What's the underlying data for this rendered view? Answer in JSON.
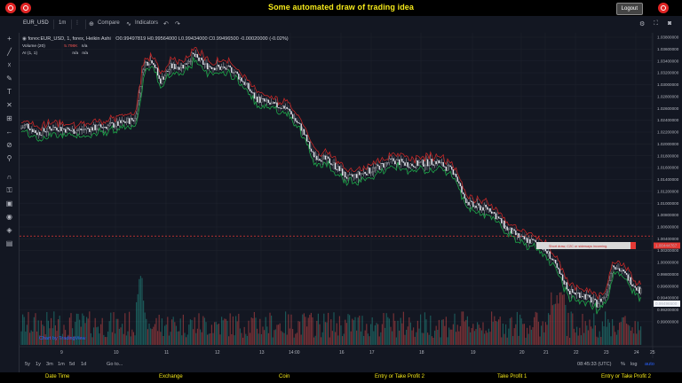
{
  "top_bar": {
    "title": "Some automated draw of trading idea",
    "logout_label": "Logout"
  },
  "toolbar": {
    "symbol": "EUR_USD",
    "interval": "1m",
    "compare_label": "Compare",
    "indicators_label": "Indicators"
  },
  "legend": {
    "line1_name": "forex:EUR_USD, 1, forex, Heikin Ashi",
    "line1_values": "O0.99497819 H0.99564000 L0.99434000 C0.99496500 -0.00020000 (-0.02%)",
    "volume": "Volume (20)",
    "volume_value": "5.798K",
    "volume_na": "n/a",
    "ai": "AI (1, 1)",
    "ai_na": "n/a",
    "ai_na2": "n/a"
  },
  "chart_data": {
    "type": "candlestick",
    "price_axis_labels": [
      "1.03800000",
      "1.03600000",
      "1.03400000",
      "1.03200000",
      "1.03000000",
      "1.02800000",
      "1.02600000",
      "1.02400000",
      "1.02200000",
      "1.02000000",
      "1.01800000",
      "1.01600000",
      "1.01400000",
      "1.01200000",
      "1.01000000",
      "1.00800000",
      "1.00600000",
      "1.00400000",
      "1.00200000",
      "1.00000000",
      "0.99800000",
      "0.99600000",
      "0.99400000",
      "0.99200000",
      "0.99000000"
    ],
    "current_price": "0.99496500",
    "hline_price": "1.00444767",
    "annotation": "Short draw, C2C or sideways incoming.",
    "date_labels": [
      "9",
      "10",
      "11",
      "12",
      "13",
      "14:00",
      "16",
      "17",
      "18",
      "19",
      "20",
      "21",
      "22",
      "23",
      "24",
      "25"
    ],
    "up_color": "#26a69a",
    "down_color": "#ef5350",
    "hline_color": "#e53935",
    "watermark": "Chart by TradingView"
  },
  "timeframes": [
    "5y",
    "1y",
    "3m",
    "1m",
    "5d",
    "1d",
    "Go to..."
  ],
  "status": {
    "time": "08:45:33 (UTC)",
    "percent": "%",
    "log": "log",
    "auto": "auto"
  },
  "footer": {
    "date_time": "Date Time",
    "exchange": "Exchange",
    "coin": "Coin",
    "entry_tp2": "Entry or Take Profit 2",
    "tp1": "Take Profit 1",
    "entry_tp2b": "Entry or Take Profit 2"
  }
}
